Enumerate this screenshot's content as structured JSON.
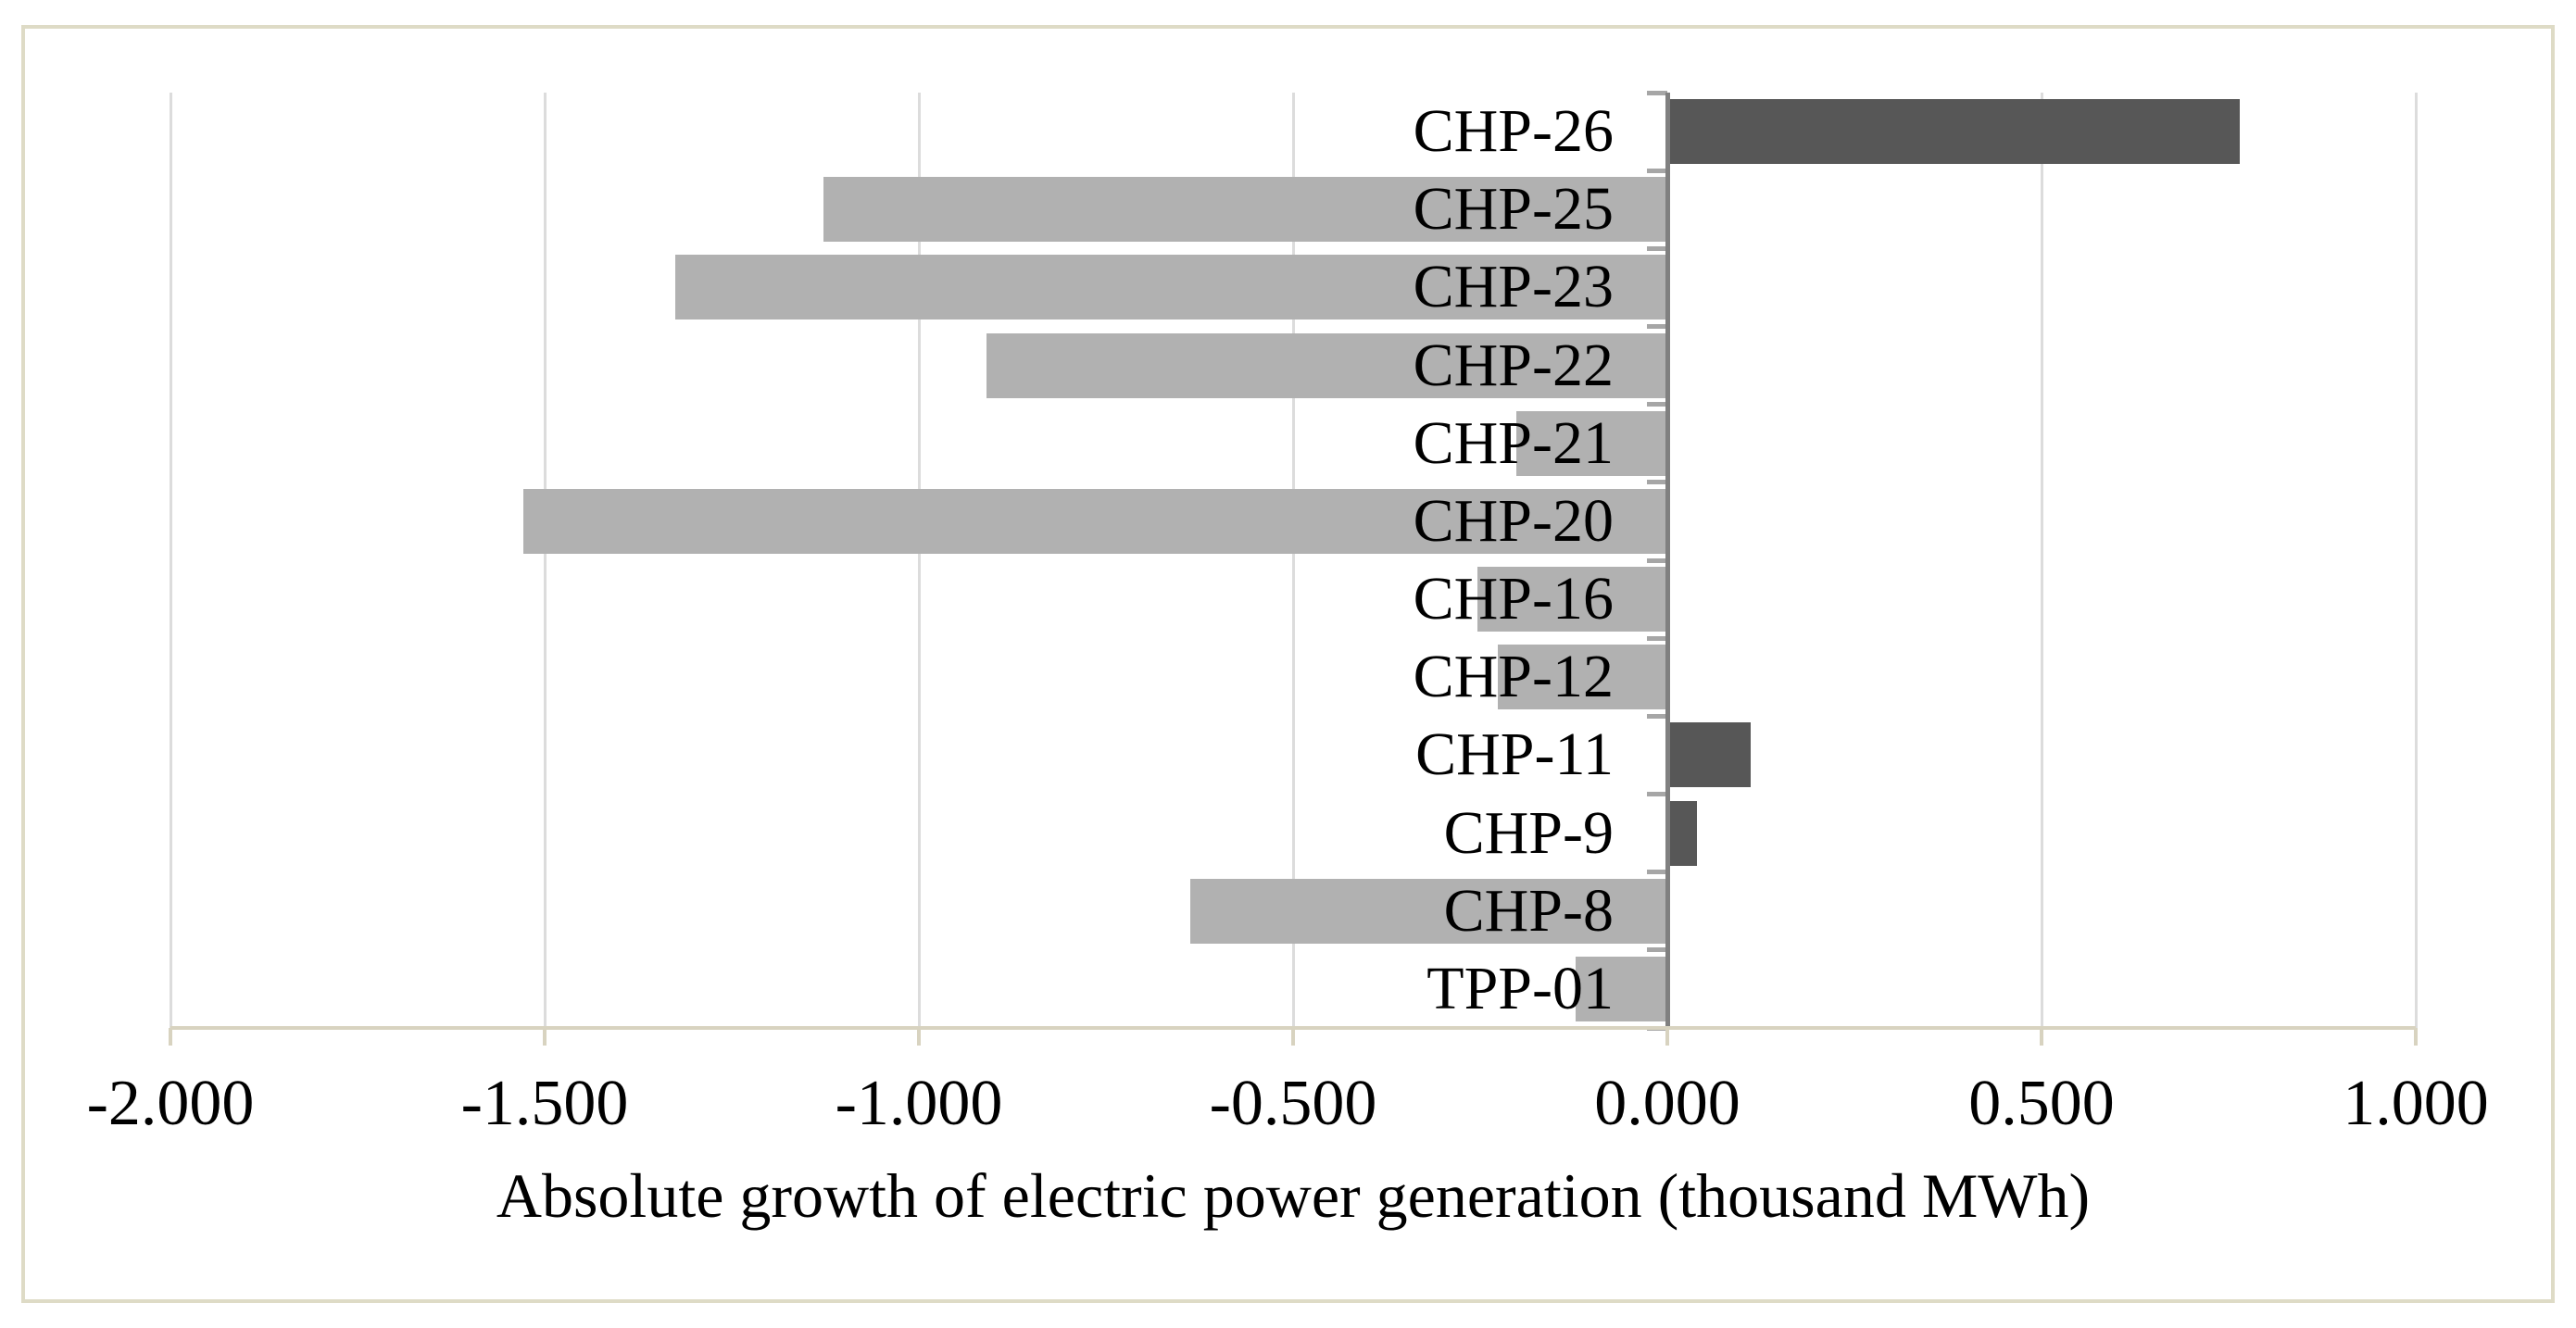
{
  "chart_data": {
    "type": "bar",
    "orientation": "horizontal",
    "title": "",
    "xlabel": "Absolute growth of electric power generation (thousand MWh)",
    "ylabel": "",
    "categories": [
      "CHP-26",
      "CHP-25",
      "CHP-23",
      "CHP-22",
      "CHP-21",
      "CHP-20",
      "CHP-16",
      "CHP-12",
      "CHP-11",
      "CHP-9",
      "CHP-8",
      "TPP-01"
    ],
    "values": [
      0.765,
      -1.127,
      -1.326,
      -0.91,
      -0.202,
      -1.528,
      -0.254,
      -0.227,
      0.111,
      0.04,
      -0.637,
      -0.123
    ],
    "xlim": [
      -2.0,
      1.0
    ],
    "x_tick_step": 0.5,
    "x_tick_values": [
      -2.0,
      -1.5,
      -1.0,
      -0.5,
      0.0,
      0.5,
      1.0
    ],
    "x_tick_labels": [
      "-2.000",
      "-1.500",
      "-1.000",
      "-0.500",
      "0.000",
      "0.500",
      "1.000"
    ],
    "grid": "vertical-major-on",
    "legend": "none",
    "colors": {
      "positive_bar": "#575757",
      "negative_bar": "#b1b1b1",
      "gridline": "#dcdcdc",
      "category_axis_line": "#808080",
      "category_tick": "#a6a6a6",
      "value_axis_line": "#d8d3c0",
      "chart_border": "#dedbc6",
      "text": "#000000",
      "background": "#ffffff"
    }
  }
}
